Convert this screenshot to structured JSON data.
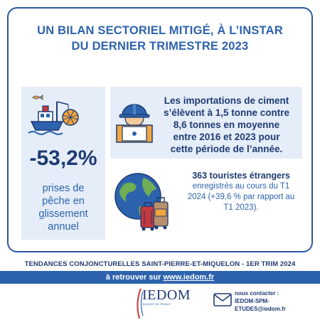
{
  "headline": {
    "line1": "UN BILAN SECTORIEL MITIGÉ, À L’INSTAR",
    "line2": "DU DERNIER  TRIMESTRE 2023"
  },
  "fishing": {
    "value": "-53,2%",
    "caption": [
      "prises de",
      "pêche en",
      "glissement",
      "annuel"
    ]
  },
  "cement": {
    "lines": [
      "Les importations de ciment",
      "s’élèvent à 1,5 tonne contre",
      "8,6 tonnes en moyenne",
      "entre 2016 et 2023 pour",
      "cette période de l’année."
    ]
  },
  "tourism": {
    "headline": "363 touristes étrangers",
    "lines": [
      "enregistrés au cours du T1",
      "2024 (+39,6 % par rapport au",
      "T1 2023)."
    ]
  },
  "footer": {
    "trends": "TENDANCES CONJONCTURELLES SAINT-PIERRE-ET-MIQUELON - 1ER TRIM 2024",
    "link_prefix": "à retrouver sur ",
    "link_text": "www.iedom.fr"
  },
  "logo": {
    "word": "IEDOM",
    "subtitle": "BANQUE DE FRANCE"
  },
  "contact": {
    "title": "nous contacter :",
    "line1": "IEDOM-SPM-",
    "line2": "ETUDES@iedom.fr"
  },
  "colors": {
    "primary": "#2d63ad",
    "dark": "#1f3b73",
    "panel": "#e4edf8",
    "accent_red": "#c8373b",
    "accent_orange": "#f0a640"
  },
  "icons": [
    "fishing-boat-icon",
    "construction-worker-icon",
    "globe-luggage-icon",
    "mail-icon"
  ]
}
